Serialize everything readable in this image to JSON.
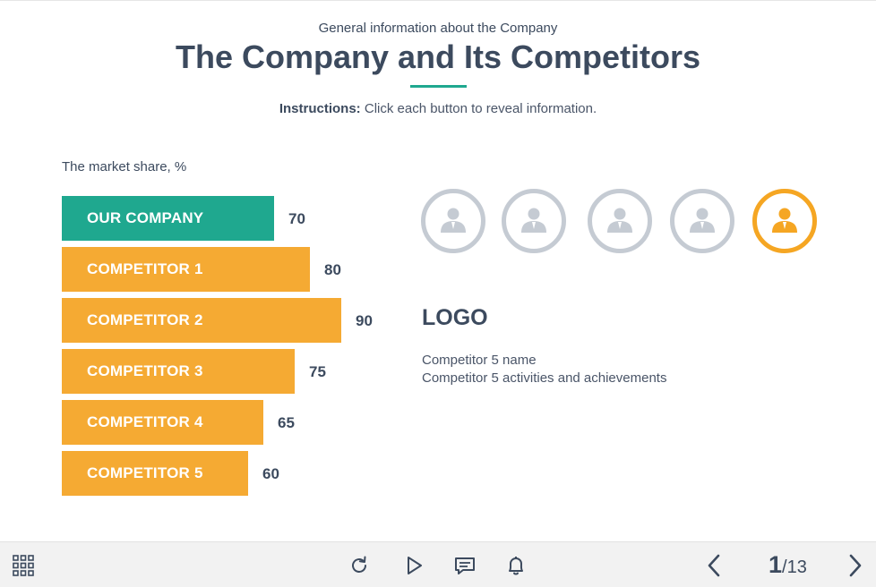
{
  "header": {
    "subtitle": "General information about the Company",
    "title": "The Company and Its Competitors",
    "instructions_label": "Instructions:",
    "instructions_text": " Click each button to reveal information."
  },
  "chart_data": {
    "type": "bar",
    "title": "The market share, %",
    "categories": [
      "OUR COMPANY",
      "COMPETITOR 1",
      "COMPETITOR 2",
      "COMPETITOR 3",
      "COMPETITOR 4",
      "COMPETITOR 5"
    ],
    "values": [
      70,
      80,
      90,
      75,
      65,
      60
    ],
    "colors": [
      "#1fa88f",
      "#f5aa33",
      "#f5aa33",
      "#f5aa33",
      "#f5aa33",
      "#f5aa33"
    ],
    "orientation": "horizontal"
  },
  "colors": {
    "accent_green": "#1fa88f",
    "accent_orange": "#f5a623",
    "avatar_inactive": "#c5cbd3",
    "text_dark": "#3c4a5e"
  },
  "avatars": [
    {
      "name": "competitor-1-avatar",
      "icon": "person-icon",
      "active": false
    },
    {
      "name": "competitor-2-avatar",
      "icon": "person-icon",
      "active": false
    },
    {
      "name": "competitor-3-avatar",
      "icon": "person-icon",
      "active": false
    },
    {
      "name": "competitor-4-avatar",
      "icon": "person-icon",
      "active": false
    },
    {
      "name": "competitor-5-avatar",
      "icon": "person-icon",
      "active": true
    }
  ],
  "detail": {
    "logo": "LOGO",
    "name": "Competitor 5 name",
    "description": "Competitor 5 activities and achievements"
  },
  "toolbar": {
    "menu_icon": "grid-menu-icon",
    "replay_icon": "replay-icon",
    "play_icon": "play-icon",
    "comments_icon": "comments-icon",
    "notifications_icon": "bell-icon",
    "prev_icon": "chevron-left-icon",
    "next_icon": "chevron-right-icon",
    "page_current": "1",
    "page_total": "/13"
  }
}
